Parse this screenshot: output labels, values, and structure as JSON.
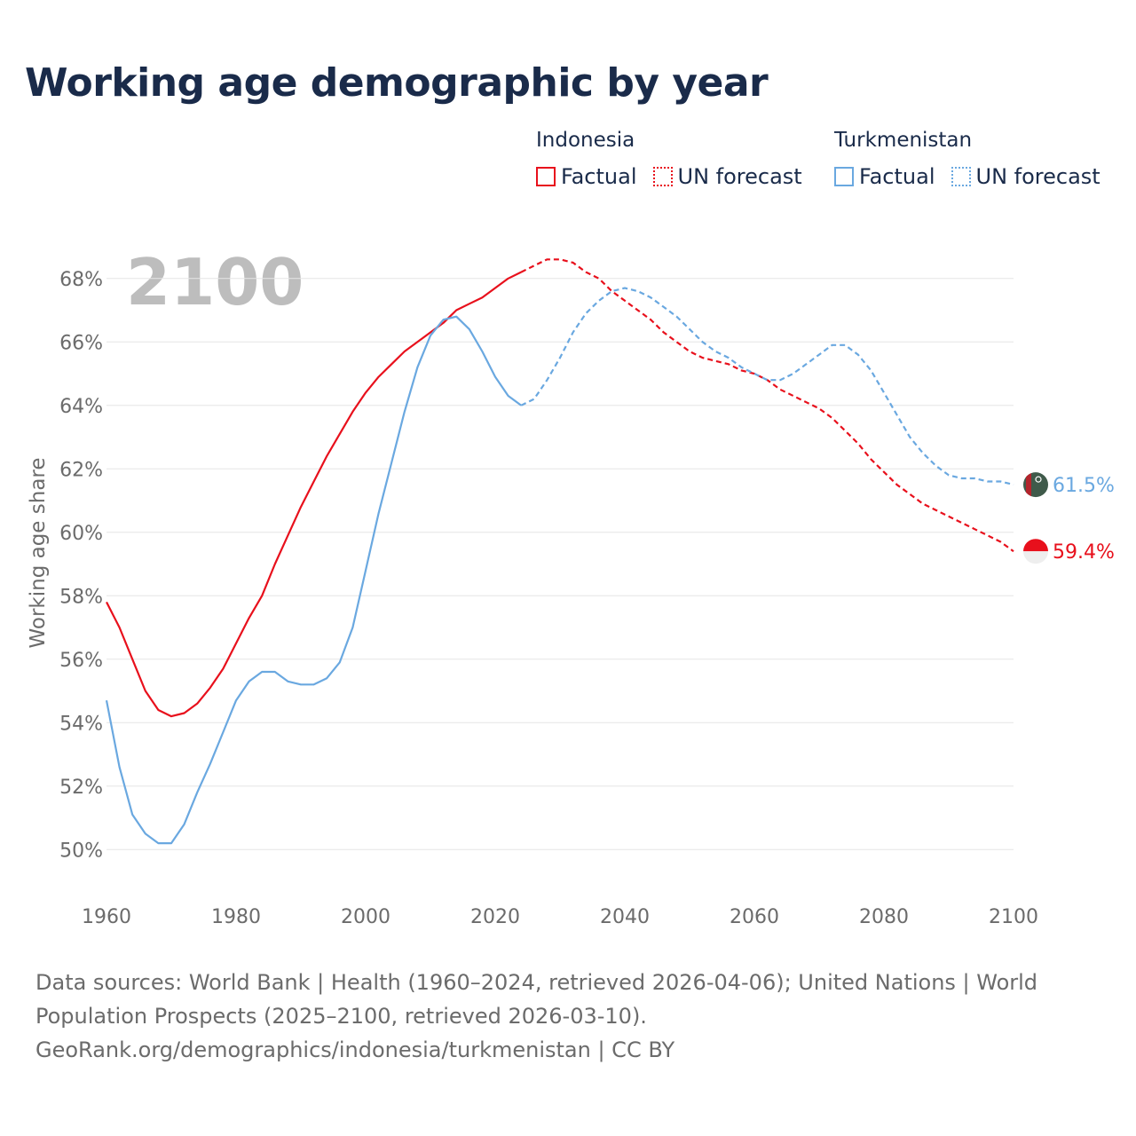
{
  "title": "Working age demographic by year",
  "legend": {
    "groups": [
      {
        "name": "Indonesia",
        "factual_label": "Factual",
        "forecast_label": "UN forecast",
        "color": "#e8101c"
      },
      {
        "name": "Turkmenistan",
        "factual_label": "Factual",
        "forecast_label": "UN forecast",
        "color": "#6aa8e0"
      }
    ]
  },
  "footer": {
    "line1": "Data sources: World Bank | Health (1960–2024, retrieved 2026-04-06); United Nations | World",
    "line2": "Population Prospects (2025–2100, retrieved 2026-03-10).",
    "line3": "GeoRank.org/demographics/indonesia/turkmenistan | CC BY"
  },
  "chart_data": {
    "type": "line",
    "title": "Working age demographic by year",
    "year_watermark": "2100",
    "ylabel": "Working age share",
    "xlabel": "",
    "xlim": [
      1960,
      2100
    ],
    "ylim": [
      49,
      69
    ],
    "x_ticks": [
      1960,
      1980,
      2000,
      2020,
      2040,
      2060,
      2080,
      2100
    ],
    "y_ticks": [
      50,
      52,
      54,
      56,
      58,
      60,
      62,
      64,
      66,
      68
    ],
    "y_tick_suffix": "%",
    "grid": true,
    "factual_end_year": 2024,
    "series": [
      {
        "name": "Indonesia",
        "color": "#e8101c",
        "end_label": "59.4%",
        "points": [
          [
            1960,
            57.8
          ],
          [
            1962,
            57.0
          ],
          [
            1964,
            56.0
          ],
          [
            1966,
            55.0
          ],
          [
            1968,
            54.4
          ],
          [
            1970,
            54.2
          ],
          [
            1972,
            54.3
          ],
          [
            1974,
            54.6
          ],
          [
            1976,
            55.1
          ],
          [
            1978,
            55.7
          ],
          [
            1980,
            56.5
          ],
          [
            1982,
            57.3
          ],
          [
            1984,
            58.0
          ],
          [
            1986,
            59.0
          ],
          [
            1988,
            59.9
          ],
          [
            1990,
            60.8
          ],
          [
            1992,
            61.6
          ],
          [
            1994,
            62.4
          ],
          [
            1996,
            63.1
          ],
          [
            1998,
            63.8
          ],
          [
            2000,
            64.4
          ],
          [
            2002,
            64.9
          ],
          [
            2004,
            65.3
          ],
          [
            2006,
            65.7
          ],
          [
            2008,
            66.0
          ],
          [
            2010,
            66.3
          ],
          [
            2012,
            66.6
          ],
          [
            2014,
            67.0
          ],
          [
            2016,
            67.2
          ],
          [
            2018,
            67.4
          ],
          [
            2020,
            67.7
          ],
          [
            2022,
            68.0
          ],
          [
            2024,
            68.2
          ],
          [
            2026,
            68.4
          ],
          [
            2028,
            68.6
          ],
          [
            2030,
            68.6
          ],
          [
            2032,
            68.5
          ],
          [
            2034,
            68.2
          ],
          [
            2036,
            68.0
          ],
          [
            2038,
            67.6
          ],
          [
            2040,
            67.3
          ],
          [
            2042,
            67.0
          ],
          [
            2044,
            66.7
          ],
          [
            2046,
            66.3
          ],
          [
            2048,
            66.0
          ],
          [
            2050,
            65.7
          ],
          [
            2052,
            65.5
          ],
          [
            2054,
            65.4
          ],
          [
            2056,
            65.3
          ],
          [
            2058,
            65.1
          ],
          [
            2060,
            65.0
          ],
          [
            2062,
            64.8
          ],
          [
            2064,
            64.5
          ],
          [
            2066,
            64.3
          ],
          [
            2068,
            64.1
          ],
          [
            2070,
            63.9
          ],
          [
            2072,
            63.6
          ],
          [
            2074,
            63.2
          ],
          [
            2076,
            62.8
          ],
          [
            2078,
            62.3
          ],
          [
            2080,
            61.9
          ],
          [
            2082,
            61.5
          ],
          [
            2084,
            61.2
          ],
          [
            2086,
            60.9
          ],
          [
            2088,
            60.7
          ],
          [
            2090,
            60.5
          ],
          [
            2092,
            60.3
          ],
          [
            2094,
            60.1
          ],
          [
            2096,
            59.9
          ],
          [
            2098,
            59.7
          ],
          [
            2100,
            59.4
          ]
        ]
      },
      {
        "name": "Turkmenistan",
        "color": "#6aa8e0",
        "end_label": "61.5%",
        "points": [
          [
            1960,
            54.7
          ],
          [
            1962,
            52.6
          ],
          [
            1964,
            51.1
          ],
          [
            1966,
            50.5
          ],
          [
            1968,
            50.2
          ],
          [
            1970,
            50.2
          ],
          [
            1972,
            50.8
          ],
          [
            1974,
            51.8
          ],
          [
            1976,
            52.7
          ],
          [
            1978,
            53.7
          ],
          [
            1980,
            54.7
          ],
          [
            1982,
            55.3
          ],
          [
            1984,
            55.6
          ],
          [
            1986,
            55.6
          ],
          [
            1988,
            55.3
          ],
          [
            1990,
            55.2
          ],
          [
            1992,
            55.2
          ],
          [
            1994,
            55.4
          ],
          [
            1996,
            55.9
          ],
          [
            1998,
            57.0
          ],
          [
            2000,
            58.8
          ],
          [
            2002,
            60.6
          ],
          [
            2004,
            62.2
          ],
          [
            2006,
            63.8
          ],
          [
            2008,
            65.2
          ],
          [
            2010,
            66.2
          ],
          [
            2012,
            66.7
          ],
          [
            2014,
            66.8
          ],
          [
            2016,
            66.4
          ],
          [
            2018,
            65.7
          ],
          [
            2020,
            64.9
          ],
          [
            2022,
            64.3
          ],
          [
            2024,
            64.0
          ],
          [
            2026,
            64.2
          ],
          [
            2028,
            64.8
          ],
          [
            2030,
            65.5
          ],
          [
            2032,
            66.3
          ],
          [
            2034,
            66.9
          ],
          [
            2036,
            67.3
          ],
          [
            2038,
            67.6
          ],
          [
            2040,
            67.7
          ],
          [
            2042,
            67.6
          ],
          [
            2044,
            67.4
          ],
          [
            2046,
            67.1
          ],
          [
            2048,
            66.8
          ],
          [
            2050,
            66.4
          ],
          [
            2052,
            66.0
          ],
          [
            2054,
            65.7
          ],
          [
            2056,
            65.5
          ],
          [
            2058,
            65.2
          ],
          [
            2060,
            65.0
          ],
          [
            2062,
            64.8
          ],
          [
            2064,
            64.8
          ],
          [
            2066,
            65.0
          ],
          [
            2068,
            65.3
          ],
          [
            2070,
            65.6
          ],
          [
            2072,
            65.9
          ],
          [
            2074,
            65.9
          ],
          [
            2076,
            65.6
          ],
          [
            2078,
            65.1
          ],
          [
            2080,
            64.4
          ],
          [
            2082,
            63.7
          ],
          [
            2084,
            63.0
          ],
          [
            2086,
            62.5
          ],
          [
            2088,
            62.1
          ],
          [
            2090,
            61.8
          ],
          [
            2092,
            61.7
          ],
          [
            2094,
            61.7
          ],
          [
            2096,
            61.6
          ],
          [
            2098,
            61.6
          ],
          [
            2100,
            61.5
          ]
        ]
      }
    ]
  }
}
